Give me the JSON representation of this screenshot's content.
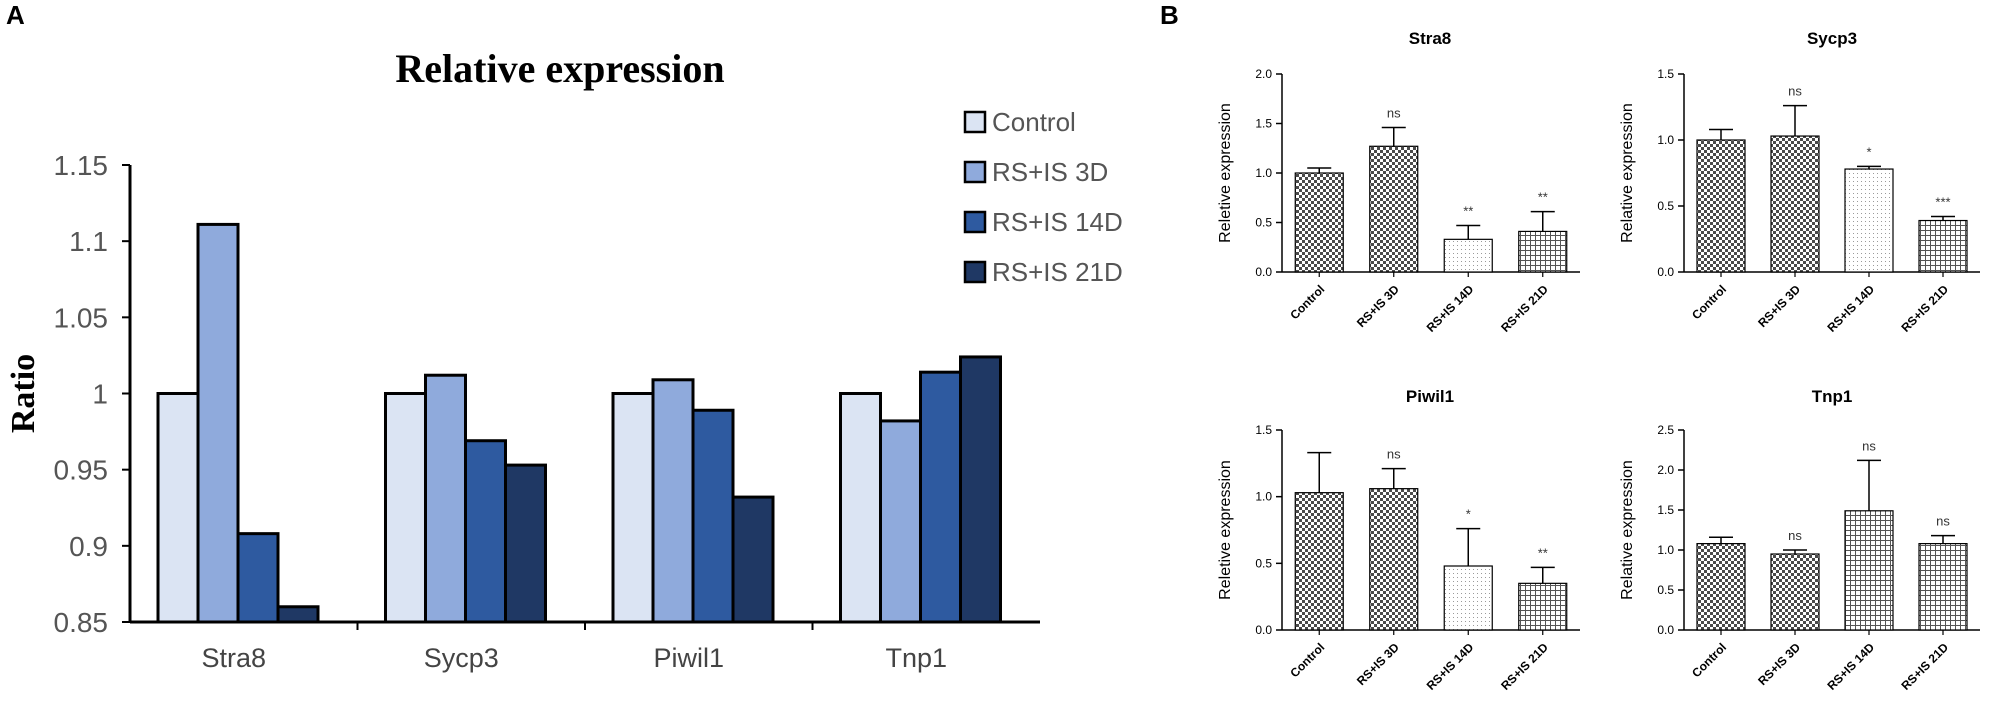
{
  "panel_a": {
    "letter": "A",
    "chart_data": {
      "type": "bar",
      "title": "Relative expression",
      "xlabel": "",
      "ylabel": "Ratio",
      "ylim": [
        0.85,
        1.15
      ],
      "yticks": [
        "0.85",
        "0.9",
        "0.95",
        "1",
        "1.05",
        "1.1",
        "1.15"
      ],
      "categories": [
        "Stra8",
        "Sycp3",
        "Piwil1",
        "Tnp1"
      ],
      "series": [
        {
          "name": "Control",
          "color": "#dbe4f3",
          "values": [
            1.0,
            1.0,
            1.0,
            1.0
          ]
        },
        {
          "name": "RS+IS 3D",
          "color": "#8faadc",
          "values": [
            1.111,
            1.012,
            1.009,
            0.982
          ]
        },
        {
          "name": "RS+IS 14D",
          "color": "#2e5aa0",
          "values": [
            0.908,
            0.969,
            0.989,
            1.014
          ]
        },
        {
          "name": "RS+IS 21D",
          "color": "#1f3864",
          "values": [
            0.86,
            0.953,
            0.932,
            1.024
          ]
        }
      ],
      "legend_position": "top-right"
    }
  },
  "panel_b": {
    "letter": "B",
    "charts": [
      {
        "type": "bar",
        "title": "Stra8",
        "ylabel": "Reletive expression",
        "ylim": [
          0,
          2.0
        ],
        "yticks": [
          "0.0",
          "0.5",
          "1.0",
          "1.5",
          "2.0"
        ],
        "categories": [
          "Control",
          "RS+IS 3D",
          "RS+IS 14D",
          "RS+IS 21D"
        ],
        "values": [
          1.0,
          1.27,
          0.33,
          0.41
        ],
        "errors": [
          0.05,
          0.19,
          0.14,
          0.2
        ],
        "significance": [
          "",
          "ns",
          "**",
          "**"
        ],
        "patterns": [
          "check",
          "check",
          "dots",
          "grid"
        ]
      },
      {
        "type": "bar",
        "title": "Sycp3",
        "ylabel": "Relative expression",
        "ylim": [
          0,
          1.5
        ],
        "yticks": [
          "0.0",
          "0.5",
          "1.0",
          "1.5"
        ],
        "categories": [
          "Control",
          "RS+IS 3D",
          "RS+IS 14D",
          "RS+IS 21D"
        ],
        "values": [
          1.0,
          1.03,
          0.78,
          0.39
        ],
        "errors": [
          0.08,
          0.23,
          0.02,
          0.03
        ],
        "significance": [
          "",
          "ns",
          "*",
          "***"
        ],
        "patterns": [
          "check",
          "check",
          "dots",
          "grid"
        ]
      },
      {
        "type": "bar",
        "title": "Piwil1",
        "ylabel": "Reletive expression",
        "ylim": [
          0,
          1.5
        ],
        "yticks": [
          "0.0",
          "0.5",
          "1.0",
          "1.5"
        ],
        "categories": [
          "Control",
          "RS+IS 3D",
          "RS+IS 14D",
          "RS+IS 21D"
        ],
        "values": [
          1.03,
          1.06,
          0.48,
          0.35
        ],
        "errors": [
          0.3,
          0.15,
          0.28,
          0.12
        ],
        "significance": [
          "",
          "ns",
          "*",
          "**"
        ],
        "patterns": [
          "check",
          "check",
          "dots",
          "grid"
        ]
      },
      {
        "type": "bar",
        "title": "Tnp1",
        "ylabel": "Relative expression",
        "ylim": [
          0,
          2.5
        ],
        "yticks": [
          "0.0",
          "0.5",
          "1.0",
          "1.5",
          "2.0",
          "2.5"
        ],
        "categories": [
          "Control",
          "RS+IS 3D",
          "RS+IS 14D",
          "RS+IS 21D"
        ],
        "values": [
          1.08,
          0.95,
          1.49,
          1.08
        ],
        "errors": [
          0.08,
          0.05,
          0.63,
          0.1
        ],
        "significance": [
          "",
          "ns",
          "ns",
          "ns"
        ],
        "patterns": [
          "check",
          "check",
          "grid",
          "grid"
        ]
      }
    ]
  }
}
